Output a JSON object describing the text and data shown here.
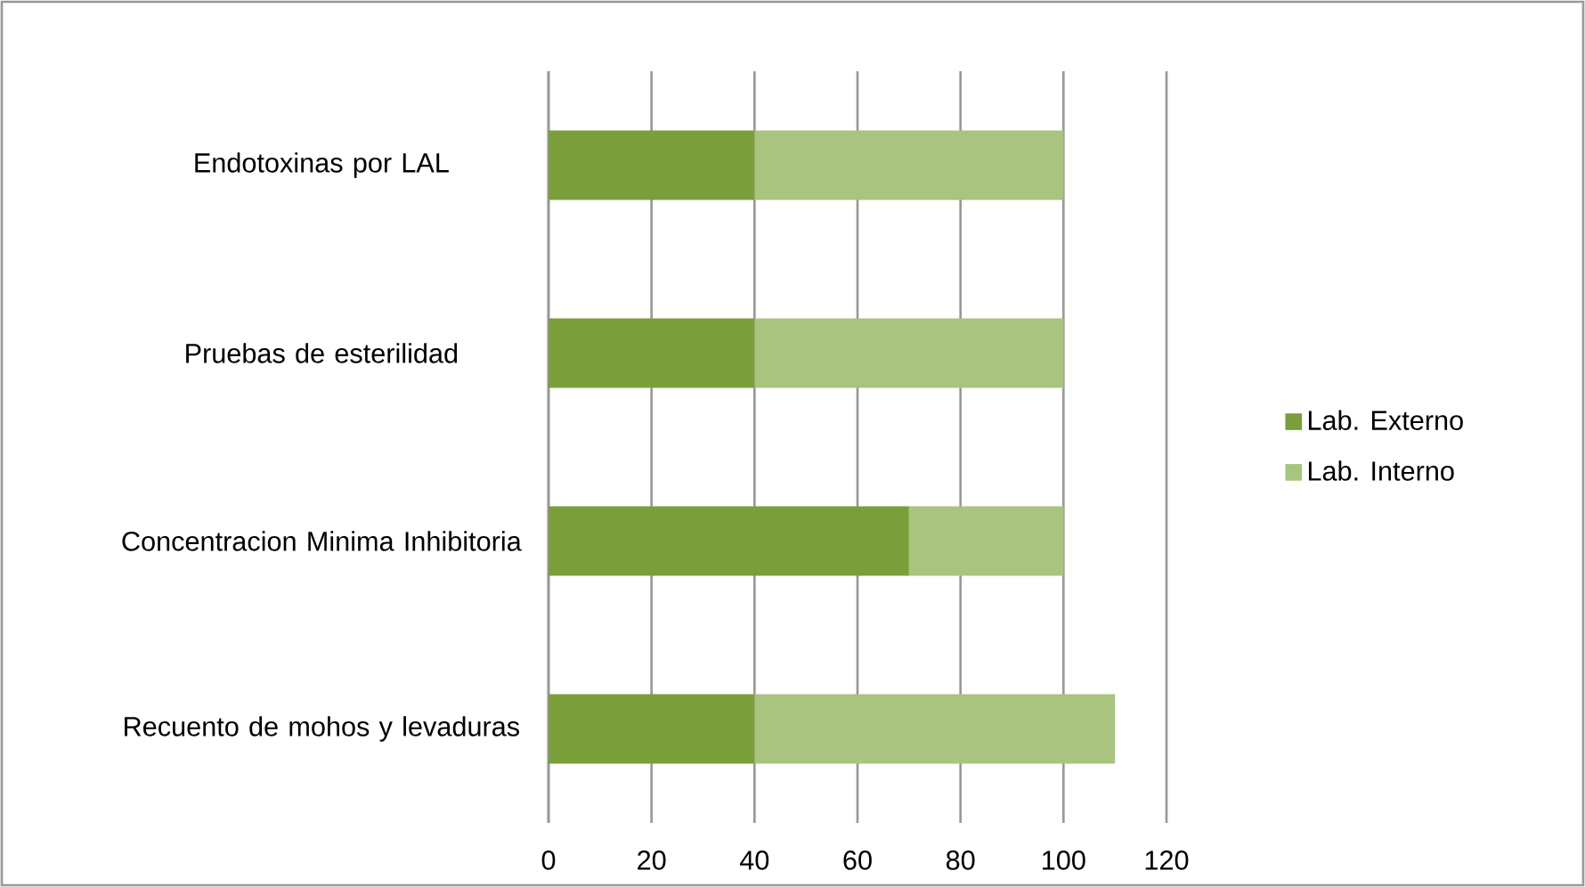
{
  "chart_data": {
    "type": "bar",
    "orientation": "horizontal",
    "stacked": true,
    "categories": [
      "Endotoxinas por LAL",
      "Pruebas de esterilidad",
      "Concentracion Minima Inhibitoria",
      "Recuento de mohos y levaduras"
    ],
    "series": [
      {
        "name": "Lab. Externo",
        "color": "#7a9e3a",
        "values": [
          40,
          40,
          70,
          40
        ]
      },
      {
        "name": "Lab. Interno",
        "color": "#a8c47e",
        "values": [
          60,
          60,
          30,
          70
        ]
      }
    ],
    "xlim": [
      0,
      120
    ],
    "xticks": [
      0,
      20,
      40,
      60,
      80,
      100,
      120
    ],
    "grid": "x",
    "legend": "right"
  }
}
